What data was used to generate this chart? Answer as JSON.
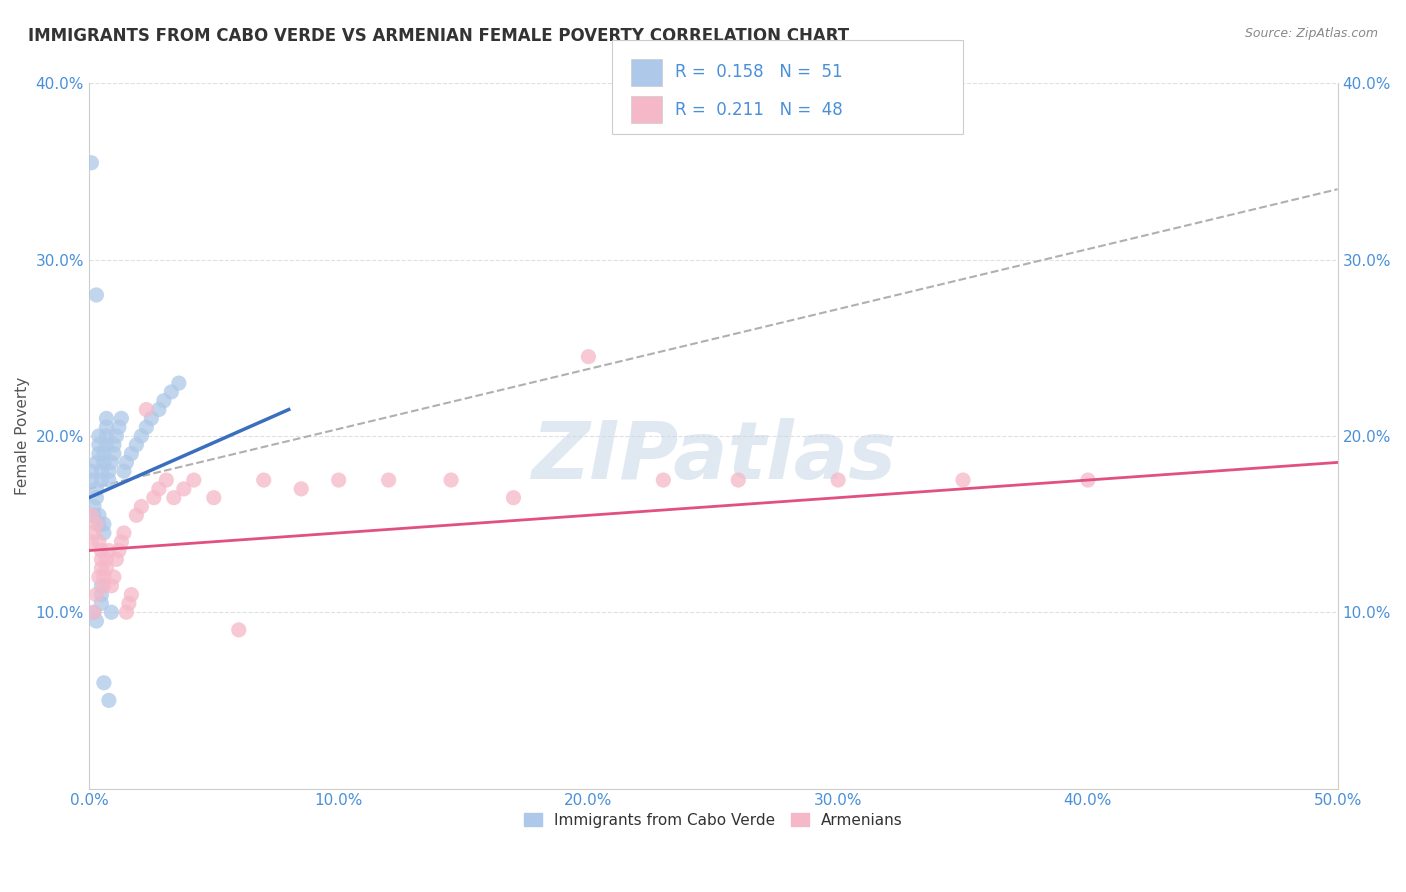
{
  "title": "IMMIGRANTS FROM CABO VERDE VS ARMENIAN FEMALE POVERTY CORRELATION CHART",
  "source": "Source: ZipAtlas.com",
  "ylabel": "Female Poverty",
  "xlim": [
    0,
    0.5
  ],
  "ylim": [
    0,
    0.4
  ],
  "xticks": [
    0.0,
    0.1,
    0.2,
    0.3,
    0.4,
    0.5
  ],
  "yticks": [
    0.0,
    0.1,
    0.2,
    0.3,
    0.4
  ],
  "xtick_labels": [
    "0.0%",
    "10.0%",
    "20.0%",
    "30.0%",
    "40.0%",
    "50.0%"
  ],
  "ytick_labels": [
    "",
    "10.0%",
    "20.0%",
    "30.0%",
    "40.0%"
  ],
  "right_ytick_labels": [
    "40.0%",
    "30.0%",
    "20.0%",
    "10.0%"
  ],
  "right_yticks": [
    0.4,
    0.3,
    0.2,
    0.1
  ],
  "legend_label1": "Immigrants from Cabo Verde",
  "legend_label2": "Armenians",
  "R1": "0.158",
  "N1": "51",
  "R2": "0.211",
  "N2": "48",
  "color_blue": "#adc8e8",
  "color_pink": "#f5b8c8",
  "color_blue_text": "#4a90d9",
  "color_dashed": "#b0b0b0",
  "color_blue_line": "#3a6fbf",
  "color_pink_line": "#e05080",
  "watermark": "ZIPatlas",
  "cabo_verde_x": [
    0.001,
    0.001,
    0.002,
    0.002,
    0.002,
    0.003,
    0.003,
    0.003,
    0.003,
    0.004,
    0.004,
    0.004,
    0.004,
    0.004,
    0.005,
    0.005,
    0.005,
    0.005,
    0.005,
    0.006,
    0.006,
    0.006,
    0.006,
    0.007,
    0.007,
    0.007,
    0.007,
    0.008,
    0.008,
    0.009,
    0.009,
    0.01,
    0.01,
    0.011,
    0.012,
    0.013,
    0.014,
    0.015,
    0.017,
    0.019,
    0.021,
    0.023,
    0.025,
    0.028,
    0.03,
    0.033,
    0.036,
    0.001,
    0.003,
    0.006,
    0.008
  ],
  "cabo_verde_y": [
    0.175,
    0.18,
    0.155,
    0.16,
    0.1,
    0.165,
    0.17,
    0.095,
    0.185,
    0.19,
    0.195,
    0.2,
    0.15,
    0.155,
    0.105,
    0.11,
    0.115,
    0.175,
    0.18,
    0.185,
    0.19,
    0.145,
    0.15,
    0.195,
    0.2,
    0.205,
    0.21,
    0.175,
    0.18,
    0.185,
    0.1,
    0.19,
    0.195,
    0.2,
    0.205,
    0.21,
    0.18,
    0.185,
    0.19,
    0.195,
    0.2,
    0.205,
    0.21,
    0.215,
    0.22,
    0.225,
    0.23,
    0.355,
    0.28,
    0.06,
    0.05
  ],
  "armenian_x": [
    0.001,
    0.001,
    0.002,
    0.002,
    0.003,
    0.003,
    0.004,
    0.004,
    0.005,
    0.005,
    0.005,
    0.006,
    0.006,
    0.007,
    0.007,
    0.008,
    0.009,
    0.01,
    0.011,
    0.012,
    0.013,
    0.014,
    0.015,
    0.016,
    0.017,
    0.019,
    0.021,
    0.023,
    0.026,
    0.028,
    0.031,
    0.034,
    0.038,
    0.042,
    0.05,
    0.06,
    0.07,
    0.085,
    0.1,
    0.12,
    0.145,
    0.17,
    0.2,
    0.23,
    0.26,
    0.3,
    0.35,
    0.4
  ],
  "armenian_y": [
    0.14,
    0.155,
    0.1,
    0.145,
    0.11,
    0.15,
    0.12,
    0.14,
    0.125,
    0.13,
    0.135,
    0.115,
    0.12,
    0.125,
    0.13,
    0.135,
    0.115,
    0.12,
    0.13,
    0.135,
    0.14,
    0.145,
    0.1,
    0.105,
    0.11,
    0.155,
    0.16,
    0.215,
    0.165,
    0.17,
    0.175,
    0.165,
    0.17,
    0.175,
    0.165,
    0.09,
    0.175,
    0.17,
    0.175,
    0.175,
    0.175,
    0.165,
    0.245,
    0.175,
    0.175,
    0.175,
    0.175,
    0.175
  ],
  "blue_line_x": [
    0.0,
    0.08
  ],
  "blue_line_y_start": 0.165,
  "blue_line_y_end": 0.215,
  "pink_line_x": [
    0.0,
    0.5
  ],
  "pink_line_y_start": 0.135,
  "pink_line_y_end": 0.185,
  "dashed_line_x": [
    0.0,
    0.5
  ],
  "dashed_line_y_start": 0.17,
  "dashed_line_y_end": 0.34
}
